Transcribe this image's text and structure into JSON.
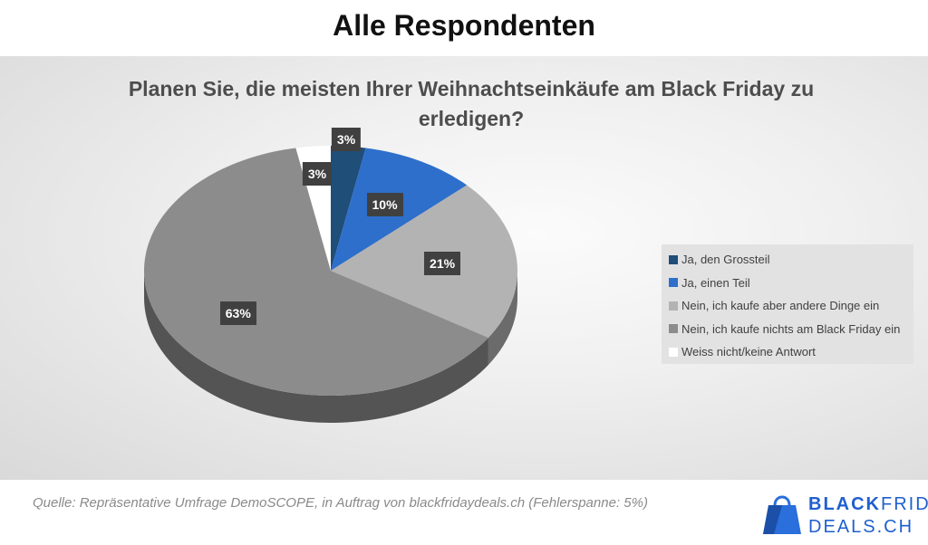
{
  "page": {
    "title": "Alle Respondenten",
    "source": "Quelle: Repräsentative Umfrage DemoSCOPE, in Auftrag von blackfridaydeals.ch (Fehlerspanne: 5%)"
  },
  "brand": {
    "line1_bold": "BLACK",
    "line1_light": "FRIDAY",
    "line2": "DEALS.CH",
    "color": "#1f5fcf"
  },
  "chart_data": {
    "type": "pie",
    "title": "Planen Sie, die meisten Ihrer Weihnachtseinkäufe am Black Friday zu erledigen?",
    "title_line1": "Planen Sie, die meisten Ihrer Weihnachtseinkäufe am Black Friday zu",
    "title_line2": "erledigen?",
    "style": "3d",
    "legend_position": "right",
    "slices": [
      {
        "name": "Ja, den Grossteil",
        "value": 3,
        "label": "3%",
        "color": "#1f4e79"
      },
      {
        "name": "Ja, einen Teil",
        "value": 10,
        "label": "10%",
        "color": "#2e6fcb"
      },
      {
        "name": "Nein, ich kaufe aber andere Dinge ein",
        "value": 21,
        "label": "21%",
        "color": "#b3b3b3"
      },
      {
        "name": "Nein, ich kaufe nichts am Black Friday ein",
        "value": 63,
        "label": "63%",
        "color": "#8c8c8c"
      },
      {
        "name": "Weiss nicht/keine Antwort",
        "value": 3,
        "label": "3%",
        "color": "#ffffff"
      }
    ]
  }
}
